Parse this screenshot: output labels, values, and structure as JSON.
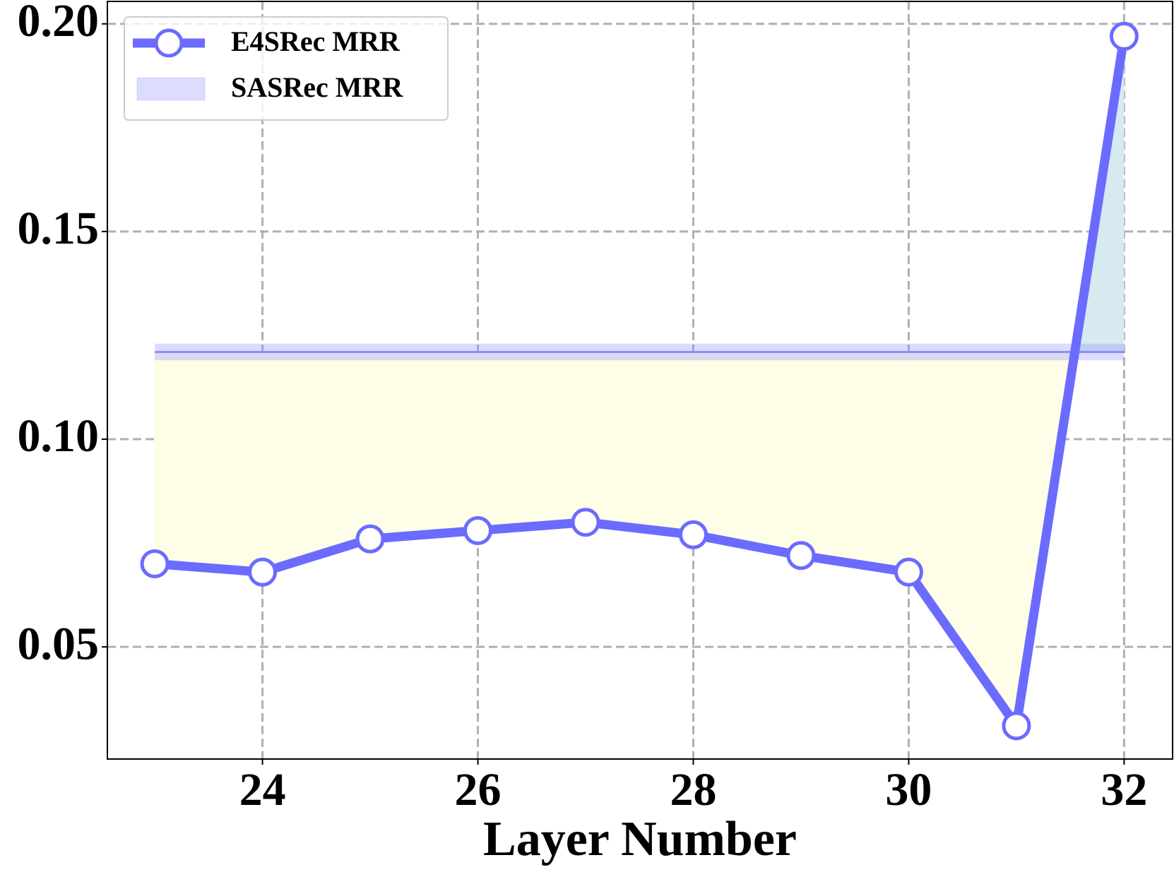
{
  "chart_data": {
    "type": "line",
    "xlabel": "Layer Number",
    "x": [
      23,
      24,
      25,
      26,
      27,
      28,
      29,
      30,
      31,
      32
    ],
    "series": [
      {
        "name": "E4SRec MRR",
        "color": "#6b6bff",
        "values": [
          0.07,
          0.068,
          0.076,
          0.078,
          0.08,
          0.077,
          0.072,
          0.068,
          0.031,
          0.197
        ]
      },
      {
        "name": "SASRec MRR",
        "color": "#8c8cff",
        "value": 0.121,
        "band": [
          0.119,
          0.123
        ]
      }
    ],
    "fill_below_color": "#fdfde8",
    "fill_above_color": "#d6eaf0",
    "xlim": [
      22.56,
      32.45
    ],
    "ylim": [
      0.023,
      0.2054
    ],
    "xticks": [
      24,
      26,
      28,
      30,
      32
    ],
    "yticks": [
      {
        "value": 0.05,
        "label": "0.05"
      },
      {
        "value": 0.1,
        "label": "0.10"
      },
      {
        "value": 0.15,
        "label": "0.15"
      },
      {
        "value": 0.2,
        "label": "0.20"
      }
    ],
    "grid": true,
    "legend": "upper left"
  }
}
